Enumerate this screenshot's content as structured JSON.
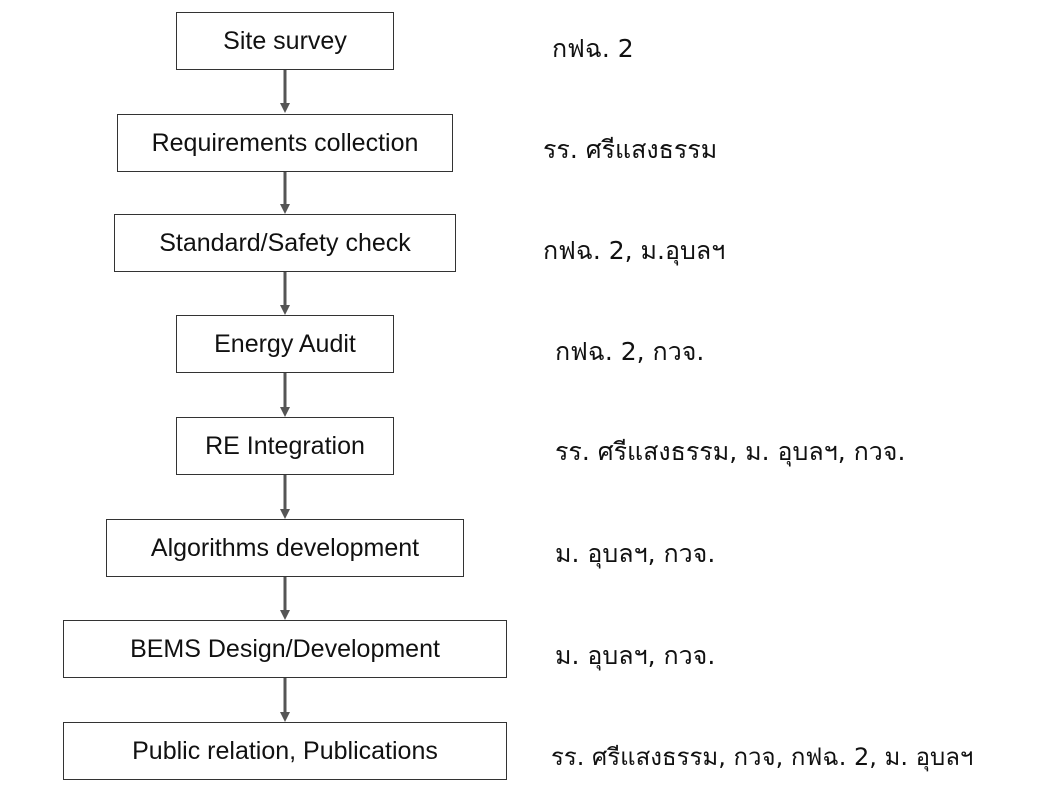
{
  "steps": [
    {
      "label": "Site survey",
      "org": "กฟฉ. 2"
    },
    {
      "label": "Requirements collection",
      "org": "รร. ศรีแสงธรรม"
    },
    {
      "label": "Standard/Safety check",
      "org": "กฟฉ. 2, ม.อุบลฯ"
    },
    {
      "label": "Energy Audit",
      "org": "กฟฉ. 2, กวจ."
    },
    {
      "label": "RE Integration",
      "org": "รร. ศรีแสงธรรม, ม. อุบลฯ, กวจ."
    },
    {
      "label": "Algorithms development",
      "org": "ม. อุบลฯ, กวจ."
    },
    {
      "label": "BEMS Design/Development",
      "org": "ม. อุบลฯ, กวจ."
    },
    {
      "label": "Public relation, Publications",
      "org": "รร. ศรีแสงธรรม, กวจ, กฟฉ. 2, ม. อุบลฯ"
    }
  ]
}
